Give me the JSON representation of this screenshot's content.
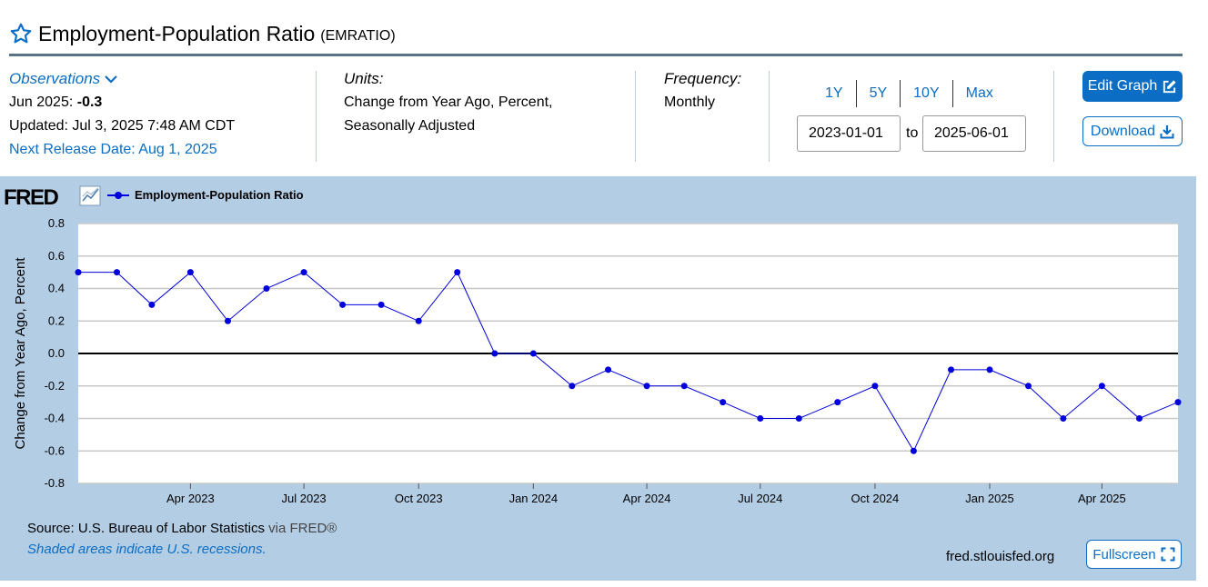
{
  "header": {
    "title": "Employment-Population Ratio",
    "series_code": "(EMRATIO)"
  },
  "observations": {
    "link_label": "Observations",
    "date_label": "Jun 2025:",
    "latest_value": "-0.3",
    "updated": "Updated: Jul 3, 2025 7:48 AM CDT",
    "next_release": "Next Release Date: Aug 1, 2025"
  },
  "units": {
    "label": "Units:",
    "line1": "Change from Year Ago, Percent,",
    "line2": "Seasonally Adjusted"
  },
  "frequency": {
    "label": "Frequency:",
    "value": "Monthly"
  },
  "range_buttons": [
    "1Y",
    "5Y",
    "10Y",
    "Max"
  ],
  "date_range": {
    "start": "2023-01-01",
    "to_label": "to",
    "end": "2025-06-01"
  },
  "actions": {
    "edit_graph": "Edit Graph",
    "download": "Download",
    "fullscreen": "Fullscreen"
  },
  "footer": {
    "source_prefix": "Source: U.S. Bureau of Labor Statistics",
    "source_via": " via FRED®",
    "shaded_note": "Shaded areas indicate U.S. recessions.",
    "site": "fred.stlouisfed.org"
  },
  "brand": {
    "logo_text": "FRED"
  },
  "colors": {
    "accent": "#0b6ec4",
    "panel_bg": "#b3cde5",
    "series": "#0000dd"
  },
  "icons": {
    "favorite": "star-icon",
    "observations": "chevron-down-icon",
    "edit": "edit-icon",
    "download": "download-icon",
    "fullscreen": "fullscreen-icon",
    "chart_type": "line-chart-icon"
  },
  "chart_data": {
    "type": "line",
    "title": "",
    "legend": [
      "Employment-Population Ratio"
    ],
    "legend_position": "top-left",
    "ylabel": "Change from Year Ago, Percent",
    "xlabel": "",
    "ylim": [
      -0.8,
      0.8
    ],
    "yticks": [
      0.8,
      0.6,
      0.4,
      0.2,
      0.0,
      -0.2,
      -0.4,
      -0.6,
      -0.8
    ],
    "ytick_labels": [
      "0.8",
      "0.6",
      "0.4",
      "0.2",
      "0.0",
      "-0.2",
      "-0.4",
      "-0.6",
      "-0.8"
    ],
    "xlim": [
      "2023-01-01",
      "2025-06-01"
    ],
    "xticks": [
      "2023-04-01",
      "2023-07-01",
      "2023-10-01",
      "2024-01-01",
      "2024-04-01",
      "2024-07-01",
      "2024-10-01",
      "2025-01-01",
      "2025-04-01"
    ],
    "xtick_labels": [
      "Apr 2023",
      "Jul 2023",
      "Oct 2023",
      "Jan 2024",
      "Apr 2024",
      "Jul 2024",
      "Oct 2024",
      "Jan 2025",
      "Apr 2025"
    ],
    "grid": true,
    "series": [
      {
        "name": "Employment-Population Ratio",
        "x": [
          "2023-01-01",
          "2023-02-01",
          "2023-03-01",
          "2023-04-01",
          "2023-05-01",
          "2023-06-01",
          "2023-07-01",
          "2023-08-01",
          "2023-09-01",
          "2023-10-01",
          "2023-11-01",
          "2023-12-01",
          "2024-01-01",
          "2024-02-01",
          "2024-03-01",
          "2024-04-01",
          "2024-05-01",
          "2024-06-01",
          "2024-07-01",
          "2024-08-01",
          "2024-09-01",
          "2024-10-01",
          "2024-11-01",
          "2024-12-01",
          "2025-01-01",
          "2025-02-01",
          "2025-03-01",
          "2025-04-01",
          "2025-05-01",
          "2025-06-01"
        ],
        "values": [
          0.5,
          0.5,
          0.3,
          0.5,
          0.2,
          0.4,
          0.5,
          0.3,
          0.3,
          0.2,
          0.5,
          0.0,
          0.0,
          -0.2,
          -0.1,
          -0.2,
          -0.2,
          -0.3,
          -0.4,
          -0.4,
          -0.3,
          -0.2,
          -0.6,
          -0.1,
          -0.1,
          -0.2,
          -0.4,
          -0.2,
          -0.4,
          -0.3
        ]
      }
    ]
  }
}
